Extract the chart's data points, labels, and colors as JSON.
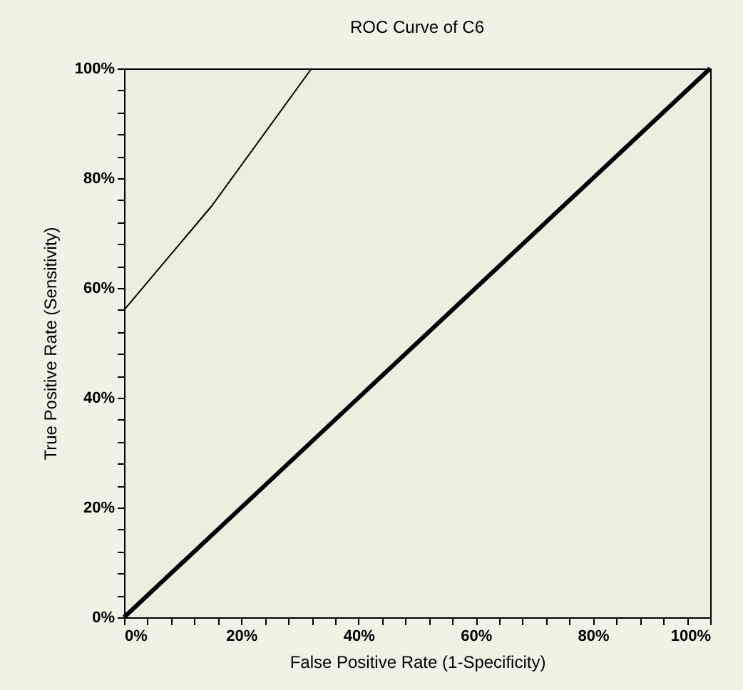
{
  "chart_data": {
    "type": "line",
    "title": "ROC Curve of C6",
    "xlabel": "False Positive Rate (1-Specificity)",
    "ylabel": "True Positive Rate (Sensitivity)",
    "series": [
      {
        "color": "#000000",
        "x": [
          0,
          15,
          32
        ],
        "values": [
          56,
          75,
          100
        ]
      },
      {
        "color": "#000000",
        "x": [
          0,
          100
        ],
        "values": [
          0,
          100
        ]
      }
    ],
    "xlim": [
      0,
      100
    ],
    "ylim": [
      0,
      100
    ],
    "xticks": [
      {
        "value": 0,
        "label": "0%"
      },
      {
        "value": 4,
        "label": null
      },
      {
        "value": 8,
        "label": null
      },
      {
        "value": 12,
        "label": null
      },
      {
        "value": 16,
        "label": null
      },
      {
        "value": 20,
        "label": "20%"
      },
      {
        "value": 24,
        "label": null
      },
      {
        "value": 28,
        "label": null
      },
      {
        "value": 32,
        "label": null
      },
      {
        "value": 36,
        "label": null
      },
      {
        "value": 40,
        "label": "40%"
      },
      {
        "value": 44,
        "label": null
      },
      {
        "value": 48,
        "label": null
      },
      {
        "value": 52,
        "label": null
      },
      {
        "value": 56,
        "label": null
      },
      {
        "value": 60,
        "label": "60%"
      },
      {
        "value": 64,
        "label": null
      },
      {
        "value": 68,
        "label": null
      },
      {
        "value": 72,
        "label": null
      },
      {
        "value": 76,
        "label": null
      },
      {
        "value": 80,
        "label": "80%"
      },
      {
        "value": 84,
        "label": null
      },
      {
        "value": 88,
        "label": null
      },
      {
        "value": 92,
        "label": null
      },
      {
        "value": 96,
        "label": null
      },
      {
        "value": 100,
        "label": "100%"
      }
    ],
    "yticks": [
      {
        "value": 0,
        "label": "0%"
      },
      {
        "value": 4,
        "label": null
      },
      {
        "value": 8,
        "label": null
      },
      {
        "value": 12,
        "label": null
      },
      {
        "value": 16,
        "label": null
      },
      {
        "value": 20,
        "label": "20%"
      },
      {
        "value": 24,
        "label": null
      },
      {
        "value": 28,
        "label": null
      },
      {
        "value": 32,
        "label": null
      },
      {
        "value": 36,
        "label": null
      },
      {
        "value": 40,
        "label": "40%"
      },
      {
        "value": 44,
        "label": null
      },
      {
        "value": 48,
        "label": null
      },
      {
        "value": 52,
        "label": null
      },
      {
        "value": 56,
        "label": null
      },
      {
        "value": 60,
        "label": "60%"
      },
      {
        "value": 64,
        "label": null
      },
      {
        "value": 68,
        "label": null
      },
      {
        "value": 72,
        "label": null
      },
      {
        "value": 76,
        "label": null
      },
      {
        "value": 80,
        "label": "80%"
      },
      {
        "value": 84,
        "label": null
      },
      {
        "value": 88,
        "label": null
      },
      {
        "value": 92,
        "label": null
      },
      {
        "value": 96,
        "label": null
      },
      {
        "value": 100,
        "label": "100%"
      }
    ],
    "grid": false,
    "legend": false,
    "marker": "none",
    "line_style": "solid"
  }
}
